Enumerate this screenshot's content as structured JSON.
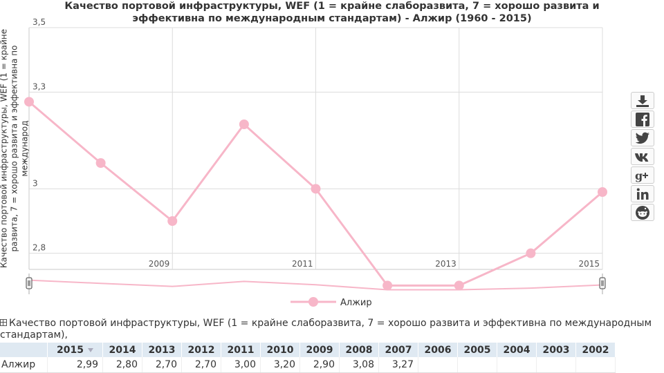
{
  "page": {
    "title_line1": "Качество портовой инфраструктуры, WEF (1 = крайне слаборазвита, 7 = хорошо развита и",
    "title_line2": "эффективна по международным стандартам) - Алжир (1960 - 2015)"
  },
  "chart_data": {
    "type": "line",
    "title": "Качество портовой инфраструктуры, WEF (1 = крайне слаборазвита, 7 = хорошо развита и эффективна по международным стандартам) - Алжир (1960 - 2015)",
    "ylabel_line1": "Качество портовой инфраструктуры, WEF (1 = крайне",
    "ylabel_line2": "развита, 7 = хорошо развита и эффективна по международ",
    "x": [
      2007,
      2008,
      2009,
      2010,
      2011,
      2012,
      2013,
      2014,
      2015
    ],
    "series": [
      {
        "name": "Алжир",
        "values": [
          3.27,
          3.08,
          2.9,
          3.2,
          3.0,
          2.7,
          2.7,
          2.8,
          2.99
        ],
        "color": "#f7b6c8"
      }
    ],
    "ylim": [
      2.75,
      3.5
    ],
    "yticks": [
      2.8,
      3,
      3.3,
      3.5
    ],
    "ytick_labels": [
      "2,8",
      "3",
      "3,3",
      "3,5"
    ],
    "xticks": [
      2009,
      2011,
      2013,
      2015
    ],
    "xtick_labels": [
      "2009",
      "2011",
      "2013",
      "2015"
    ],
    "grid": true,
    "legend": "bottom-center",
    "navigator": true
  },
  "share_icons": [
    "download-icon",
    "facebook-icon",
    "twitter-icon",
    "vk-icon",
    "google-plus-icon",
    "linkedin-icon",
    "reddit-icon"
  ],
  "table": {
    "title": "Качество портовой инфраструктуры, WEF (1 = крайне слаборазвита, 7 = хорошо развита и эффективна по международным стандартам),",
    "headers": [
      "2015",
      "2014",
      "2013",
      "2012",
      "2011",
      "2010",
      "2009",
      "2008",
      "2007",
      "2006",
      "2005",
      "2004",
      "2003",
      "2002"
    ],
    "sorted_column": "2015",
    "row_label": "Алжир",
    "values": [
      "2,99",
      "2,80",
      "2,70",
      "2,70",
      "3,00",
      "3,20",
      "2,90",
      "3,08",
      "3,27",
      "",
      "",
      "",
      "",
      ""
    ]
  }
}
